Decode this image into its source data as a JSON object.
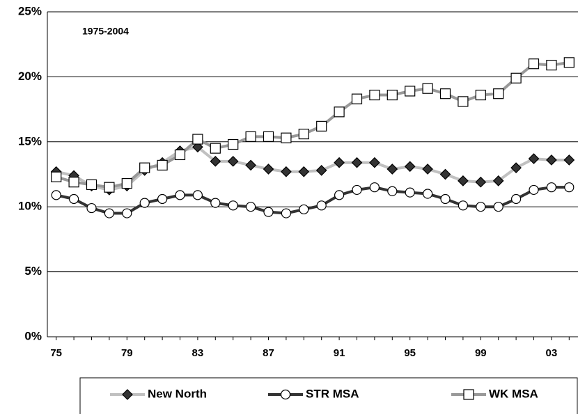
{
  "chart_data": {
    "type": "line",
    "annotation": "1975-2004",
    "categories": [
      "75",
      null,
      null,
      null,
      "79",
      null,
      null,
      null,
      "83",
      null,
      null,
      null,
      "87",
      null,
      null,
      null,
      "91",
      null,
      null,
      null,
      "95",
      null,
      null,
      null,
      "99",
      null,
      null,
      null,
      "03",
      null
    ],
    "series": [
      {
        "name": "New North",
        "color": "#c0c0c0",
        "marker": "diamond",
        "marker_color": "#333333",
        "values": [
          12.7,
          12.4,
          11.6,
          11.3,
          11.6,
          12.8,
          13.4,
          14.3,
          14.6,
          13.5,
          13.5,
          13.2,
          12.9,
          12.7,
          12.7,
          12.8,
          13.4,
          13.4,
          13.4,
          12.9,
          13.1,
          12.9,
          12.5,
          12.0,
          11.9,
          12.0,
          13.0,
          13.7,
          13.6,
          13.6
        ]
      },
      {
        "name": "STR MSA",
        "color": "#333333",
        "marker": "circle",
        "marker_color": "#ffffff",
        "values": [
          10.9,
          10.6,
          9.9,
          9.5,
          9.5,
          10.3,
          10.6,
          10.9,
          10.9,
          10.3,
          10.1,
          10.0,
          9.6,
          9.5,
          9.8,
          10.1,
          10.9,
          11.3,
          11.5,
          11.2,
          11.1,
          11.0,
          10.6,
          10.1,
          10.0,
          10.0,
          10.6,
          11.3,
          11.5,
          11.5
        ]
      },
      {
        "name": "WK MSA",
        "color": "#999999",
        "marker": "square",
        "marker_color": "#ffffff",
        "values": [
          12.3,
          11.9,
          11.7,
          11.5,
          11.8,
          13.0,
          13.2,
          14.0,
          15.2,
          14.5,
          14.8,
          15.4,
          15.4,
          15.3,
          15.6,
          16.2,
          17.3,
          18.3,
          18.6,
          18.6,
          18.9,
          19.1,
          18.7,
          18.1,
          18.6,
          18.7,
          19.9,
          21.0,
          20.9,
          21.1
        ]
      }
    ],
    "ylim": [
      0,
      25
    ],
    "yticks": [
      {
        "value": 0,
        "label": "0%"
      },
      {
        "value": 5,
        "label": "5%"
      },
      {
        "value": 10,
        "label": "10%"
      },
      {
        "value": 15,
        "label": "15%"
      },
      {
        "value": 20,
        "label": "20%"
      },
      {
        "value": 25,
        "label": "25%"
      }
    ],
    "grid": true
  }
}
